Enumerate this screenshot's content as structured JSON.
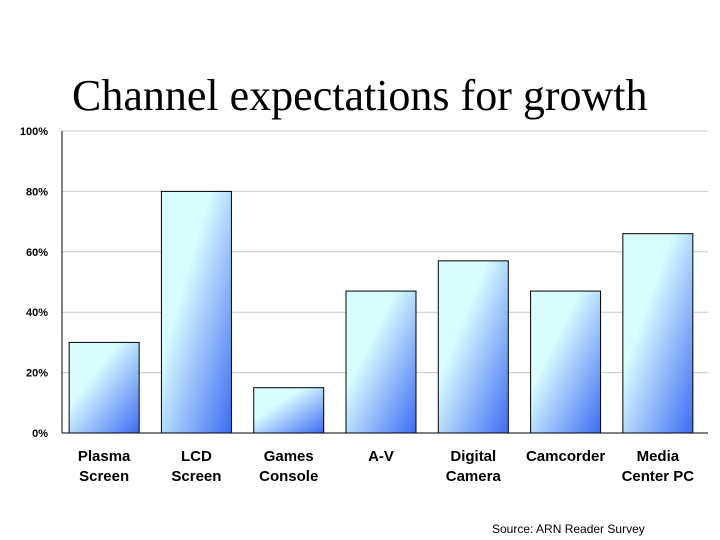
{
  "title": "Channel expectations for growth",
  "source": "Source: ARN Reader Survey",
  "colors": {
    "bar_light": "#d8fcff",
    "bar_dark": "#3c6cf2",
    "bar_stroke": "#000000",
    "gridline": "#c8c8c8",
    "axis": "#000000"
  },
  "chart_data": {
    "type": "bar",
    "categories": [
      [
        "Plasma",
        "Screen"
      ],
      [
        "LCD",
        "Screen"
      ],
      [
        "Games",
        "Console"
      ],
      [
        "A-V"
      ],
      [
        "Digital",
        "Camera"
      ],
      [
        "Camcorder"
      ],
      [
        "Media",
        "Center PC"
      ]
    ],
    "values": [
      30,
      80,
      15,
      47,
      57,
      47,
      66
    ],
    "ylim": [
      0,
      100
    ],
    "yticks": [
      0,
      20,
      40,
      60,
      80,
      100
    ],
    "ytick_labels": [
      "0%",
      "20%",
      "40%",
      "60%",
      "80%",
      "100%"
    ],
    "grid": true,
    "title": "",
    "xlabel": "",
    "ylabel": ""
  }
}
